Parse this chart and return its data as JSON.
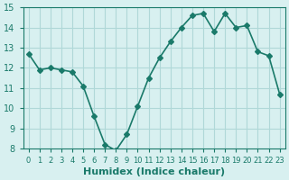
{
  "x": [
    0,
    1,
    2,
    3,
    4,
    5,
    6,
    7,
    8,
    9,
    10,
    11,
    12,
    13,
    14,
    15,
    16,
    17,
    18,
    19,
    20,
    21,
    22,
    23
  ],
  "y": [
    12.7,
    11.9,
    12.0,
    11.9,
    11.8,
    11.1,
    9.6,
    8.2,
    7.9,
    8.7,
    10.1,
    11.5,
    12.5,
    13.3,
    14.0,
    14.6,
    14.7,
    13.8,
    14.7,
    14.0,
    14.1,
    12.8,
    12.6,
    10.7
  ],
  "line_color": "#1a7a6a",
  "marker": "D",
  "markersize": 3,
  "linewidth": 1.2,
  "background_color": "#d8f0f0",
  "grid_color": "#b0d8d8",
  "xlabel": "Humidex (Indice chaleur)",
  "ylabel": "",
  "title": "",
  "ylim": [
    8,
    15
  ],
  "xlim": [
    -0.5,
    23.5
  ],
  "yticks": [
    8,
    9,
    10,
    11,
    12,
    13,
    14,
    15
  ],
  "xtick_labels": [
    "0",
    "1",
    "2",
    "3",
    "4",
    "5",
    "6",
    "7",
    "8",
    "9",
    "10",
    "11",
    "12",
    "13",
    "14",
    "15",
    "16",
    "17",
    "18",
    "19",
    "20",
    "21",
    "22",
    "23"
  ],
  "tick_color": "#1a7a6a",
  "xlabel_fontsize": 8,
  "tick_fontsize": 7
}
